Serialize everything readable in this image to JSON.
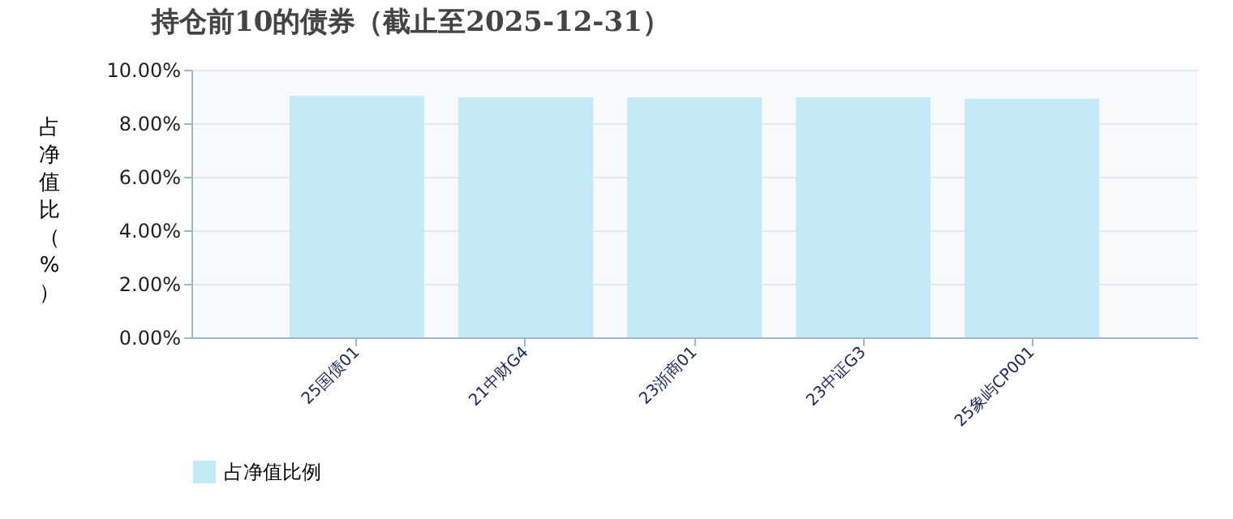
{
  "chart_data": {
    "type": "bar",
    "title": "持仓前10的债券（截止至2025-12-31）",
    "ylabel": "占净值比（%）",
    "categories": [
      "25国债01",
      "21中财G4",
      "23浙商01",
      "23中证G3",
      "25象屿CP001"
    ],
    "series": [
      {
        "name": "占净值比例",
        "color": "#c4eaf6",
        "values": [
          9.02,
          8.97,
          8.97,
          8.97,
          8.92
        ]
      }
    ],
    "ylim": [
      0,
      10
    ],
    "yticks": [
      {
        "value": 0,
        "label": "0.00%"
      },
      {
        "value": 2,
        "label": "2.00%"
      },
      {
        "value": 4,
        "label": "4.00%"
      },
      {
        "value": 6,
        "label": "6.00%"
      },
      {
        "value": 8,
        "label": "8.00%"
      },
      {
        "value": 10,
        "label": "10.00%"
      }
    ],
    "grid": "y",
    "legend": "bottom"
  }
}
